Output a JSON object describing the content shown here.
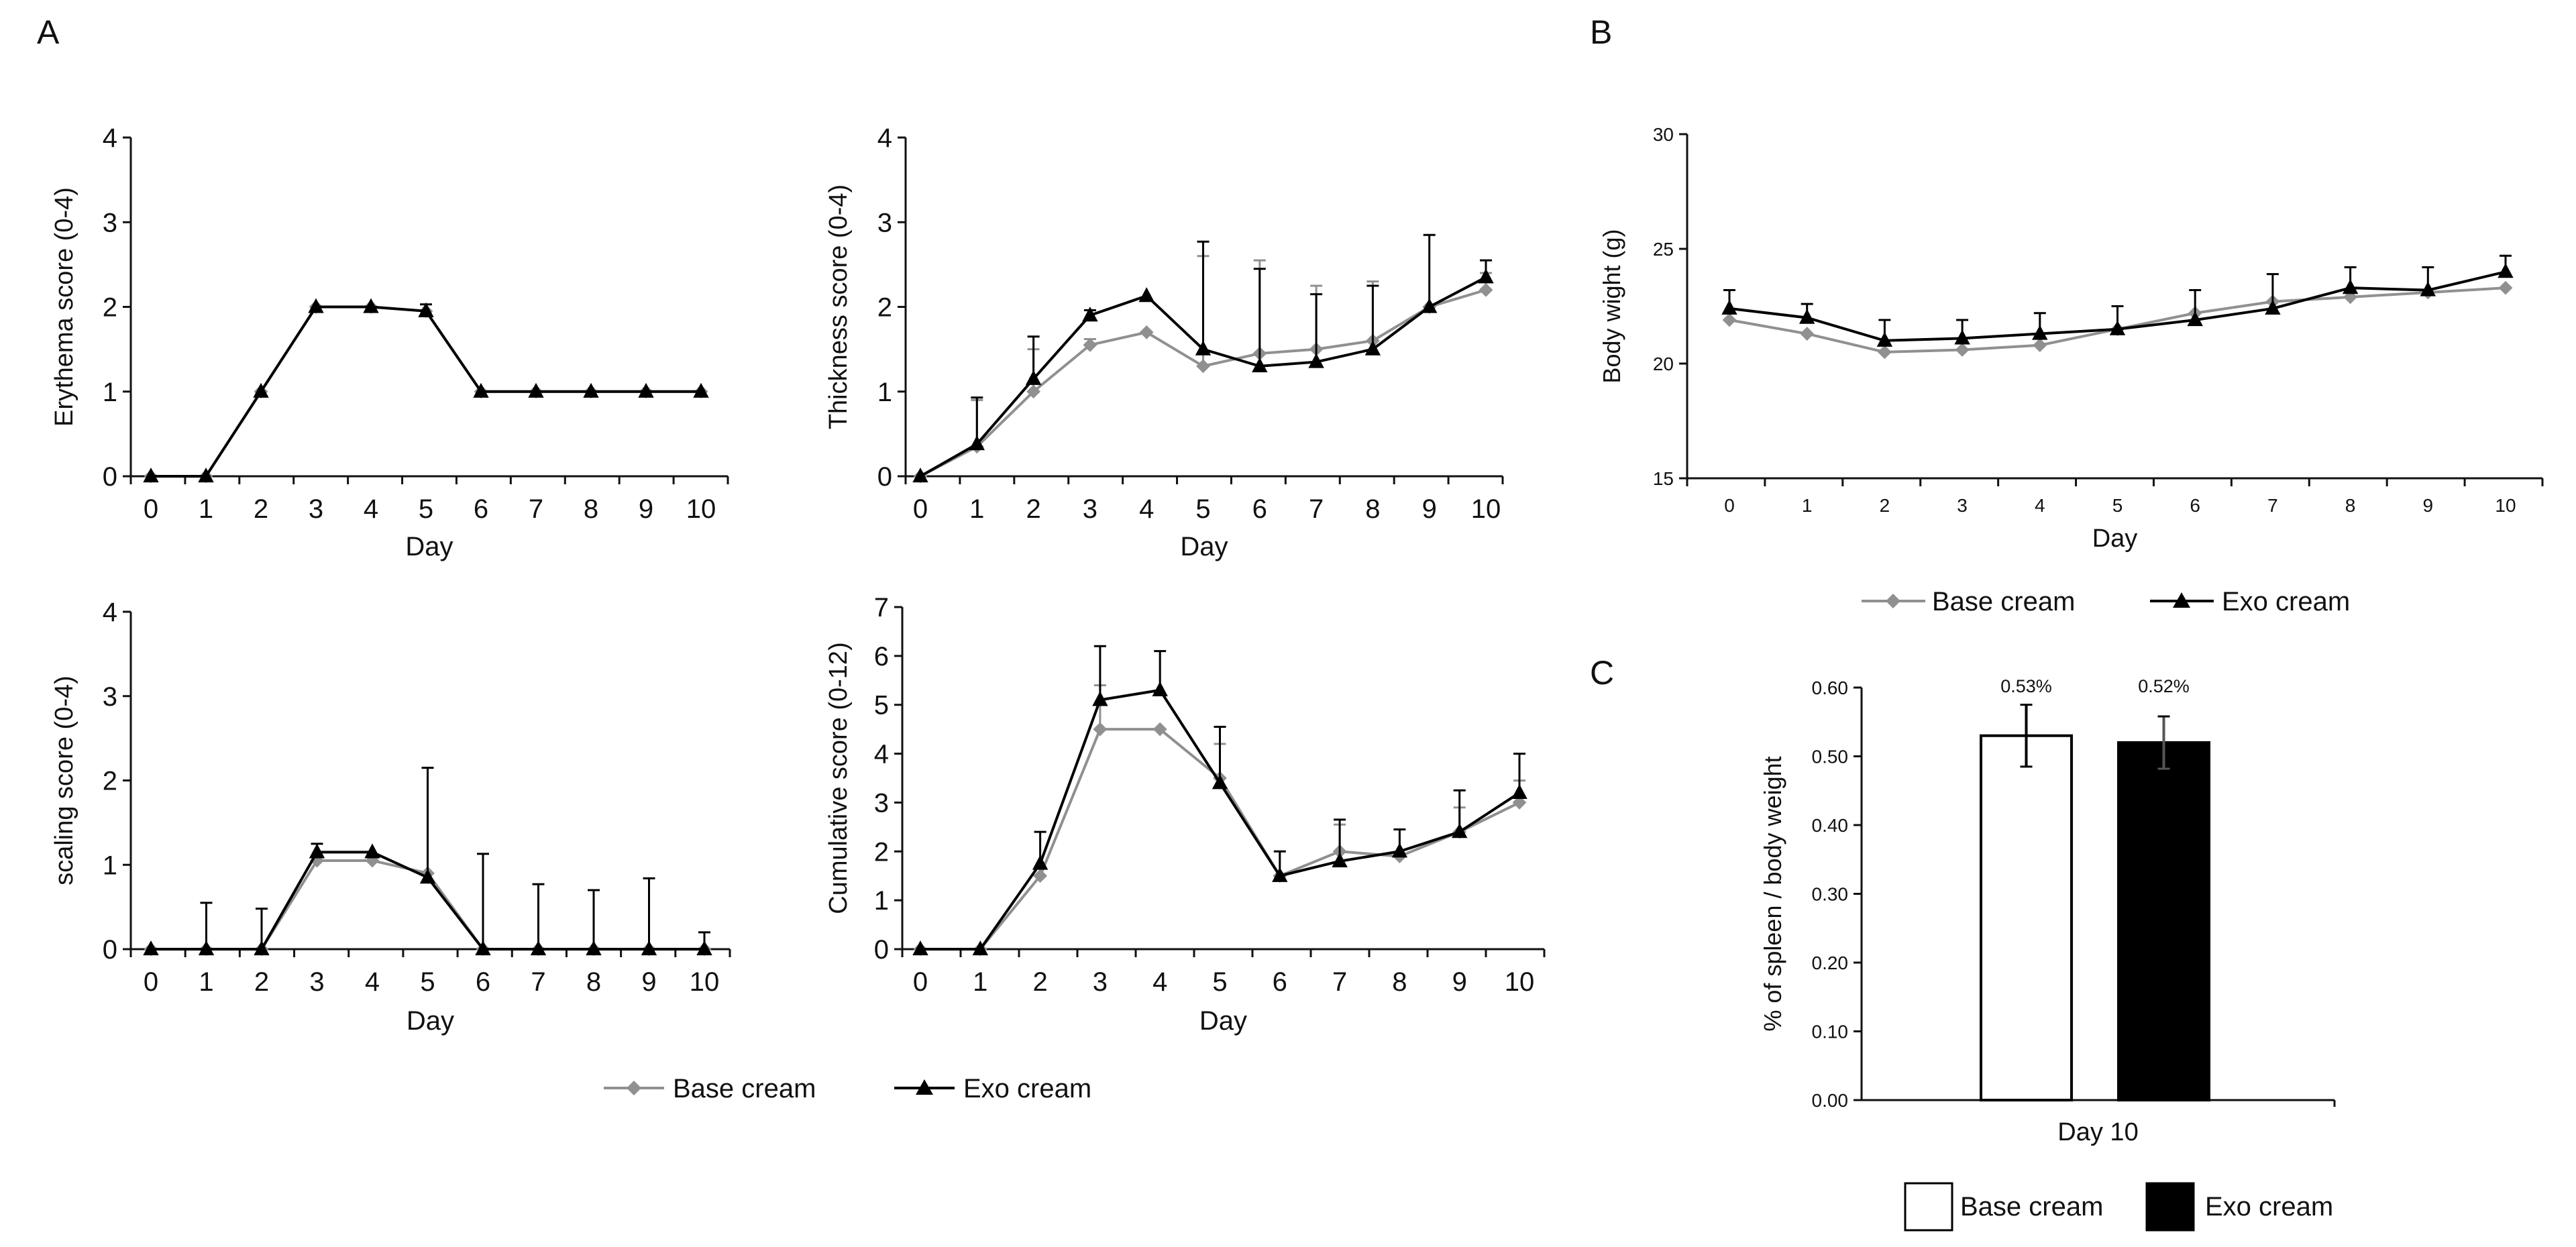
{
  "panel_labels": {
    "a": "A",
    "b": "B",
    "c": "C"
  },
  "colors": {
    "base": "#909090",
    "exo": "#000000",
    "axis": "#111111"
  },
  "legend_a": {
    "base": "Base cream",
    "exo": "Exo cream"
  },
  "legend_b": {
    "base": "Base cream",
    "exo": "Exo cream"
  },
  "legend_c": {
    "base": "Base cream",
    "exo": "Exo cream"
  },
  "chart_data": [
    {
      "id": "erythema",
      "type": "line",
      "title": "",
      "xlabel": "Day",
      "ylabel": "Erythema score (0-4)",
      "x": [
        0,
        1,
        2,
        3,
        4,
        5,
        6,
        7,
        8,
        9,
        10
      ],
      "xticks": [
        "0",
        "1",
        "2",
        "3",
        "4",
        "5",
        "6",
        "7",
        "8",
        "9",
        "10"
      ],
      "ylim": [
        0,
        4
      ],
      "yticks": [
        "0",
        "1",
        "2",
        "3",
        "4"
      ],
      "series": [
        {
          "name": "Base cream",
          "values": [
            0,
            0,
            1,
            2,
            2,
            1.95,
            1,
            1,
            1,
            1,
            1
          ],
          "err": [
            0,
            0,
            0,
            0,
            0,
            0,
            0,
            0,
            0,
            0,
            0
          ]
        },
        {
          "name": "Exo cream",
          "values": [
            0,
            0,
            1,
            2,
            2,
            1.95,
            1,
            1,
            1,
            1,
            1
          ],
          "err": [
            0,
            0,
            0,
            0,
            0,
            0.08,
            0,
            0,
            0,
            0,
            0
          ]
        }
      ]
    },
    {
      "id": "thickness",
      "type": "line",
      "title": "",
      "xlabel": "Day",
      "ylabel": "Thickness score (0-4)",
      "x": [
        0,
        1,
        2,
        3,
        4,
        5,
        6,
        7,
        8,
        9,
        10
      ],
      "xticks": [
        "0",
        "1",
        "2",
        "3",
        "4",
        "5",
        "6",
        "7",
        "8",
        "9",
        "10"
      ],
      "ylim": [
        0,
        4
      ],
      "yticks": [
        "0",
        "1",
        "2",
        "3",
        "4"
      ],
      "series": [
        {
          "name": "Base cream",
          "values": [
            0,
            0.35,
            1,
            1.55,
            1.7,
            1.3,
            1.45,
            1.5,
            1.6,
            2,
            2.2
          ],
          "err": [
            0,
            0.55,
            0.5,
            0.07,
            0,
            1.3,
            1.1,
            0.75,
            0.7,
            0,
            0.2
          ]
        },
        {
          "name": "Exo cream",
          "values": [
            0,
            0.38,
            1.15,
            1.9,
            2.13,
            1.5,
            1.3,
            1.35,
            1.5,
            2,
            2.35
          ],
          "err": [
            0,
            0.55,
            0.5,
            0.06,
            0,
            1.27,
            1.15,
            0.8,
            0.75,
            0.85,
            0.2
          ]
        }
      ]
    },
    {
      "id": "scaling",
      "type": "line",
      "title": "",
      "xlabel": "Day",
      "ylabel": "scaling score (0-4)",
      "x": [
        0,
        1,
        2,
        3,
        4,
        5,
        6,
        7,
        8,
        9,
        10
      ],
      "xticks": [
        "0",
        "1",
        "2",
        "3",
        "4",
        "5",
        "6",
        "7",
        "8",
        "9",
        "10"
      ],
      "ylim": [
        0,
        4
      ],
      "yticks": [
        "0",
        "1",
        "2",
        "3",
        "4"
      ],
      "series": [
        {
          "name": "Base cream",
          "values": [
            0,
            0,
            0,
            1.05,
            1.05,
            0.9,
            0,
            0,
            0,
            0,
            0
          ],
          "err": [
            0,
            0,
            0,
            0,
            0,
            1.25,
            0,
            0,
            0,
            0,
            0
          ]
        },
        {
          "name": "Exo cream",
          "values": [
            0,
            0,
            0,
            1.15,
            1.15,
            0.85,
            0,
            0,
            0,
            0,
            0
          ],
          "err": [
            0,
            0.55,
            0.48,
            0.1,
            0,
            1.3,
            1.13,
            0.77,
            0.7,
            0.84,
            0.2
          ]
        }
      ]
    },
    {
      "id": "cumulative",
      "type": "line",
      "title": "",
      "xlabel": "Day",
      "ylabel": "Cumulative score (0-12)",
      "x": [
        0,
        1,
        2,
        3,
        4,
        5,
        6,
        7,
        8,
        9,
        10
      ],
      "xticks": [
        "0",
        "1",
        "2",
        "3",
        "4",
        "5",
        "6",
        "7",
        "8",
        "9",
        "10"
      ],
      "ylim": [
        0,
        7
      ],
      "yticks": [
        "0",
        "1",
        "2",
        "3",
        "4",
        "5",
        "6",
        "7"
      ],
      "series": [
        {
          "name": "Base cream",
          "values": [
            0,
            0,
            1.5,
            4.5,
            4.5,
            3.5,
            1.5,
            2,
            1.9,
            2.4,
            3
          ],
          "err": [
            0,
            0,
            0,
            0.9,
            0,
            0.7,
            0,
            0.55,
            0,
            0.5,
            0.45
          ]
        },
        {
          "name": "Exo cream",
          "values": [
            0,
            0,
            1.75,
            5.1,
            5.3,
            3.4,
            1.5,
            1.8,
            2,
            2.4,
            3.2
          ],
          "err": [
            0,
            0,
            0.65,
            1.1,
            0.8,
            1.15,
            0.5,
            0.85,
            0.45,
            0.85,
            0.8
          ]
        }
      ]
    },
    {
      "id": "bodyweight",
      "type": "line",
      "title": "",
      "xlabel": "Day",
      "ylabel": "Body wight (g)",
      "x": [
        0,
        1,
        2,
        3,
        4,
        5,
        6,
        7,
        8,
        9,
        10
      ],
      "xticks": [
        "0",
        "1",
        "2",
        "3",
        "4",
        "5",
        "6",
        "7",
        "8",
        "9",
        "10"
      ],
      "ylim": [
        15,
        30
      ],
      "yticks": [
        "15",
        "20",
        "25",
        "30"
      ],
      "series": [
        {
          "name": "Base cream",
          "values": [
            21.9,
            21.3,
            20.5,
            20.6,
            20.8,
            21.5,
            22.2,
            22.7,
            22.9,
            23.1,
            23.3
          ],
          "err": [
            0,
            0,
            0,
            0,
            0,
            0,
            0,
            0,
            0,
            0,
            0
          ]
        },
        {
          "name": "Exo cream",
          "values": [
            22.4,
            22,
            21,
            21.1,
            21.3,
            21.5,
            21.9,
            22.4,
            23.3,
            23.2,
            24
          ],
          "err": [
            0.8,
            0.6,
            0.9,
            0.8,
            0.9,
            1,
            1.3,
            1.5,
            0.9,
            1,
            0.7
          ]
        }
      ]
    },
    {
      "id": "spleen",
      "type": "bar",
      "title": "",
      "xlabel": "Day 10",
      "ylabel": "% of spleen / body weight",
      "categories": [
        "Base cream",
        "Exo cream"
      ],
      "values": [
        0.53,
        0.52
      ],
      "err": [
        0.045,
        0.038
      ],
      "value_labels": [
        "0.53%",
        "0.52%"
      ],
      "ylim": [
        0,
        0.6
      ],
      "yticks": [
        "0.00",
        "0.10",
        "0.20",
        "0.30",
        "0.40",
        "0.50",
        "0.60"
      ]
    }
  ]
}
